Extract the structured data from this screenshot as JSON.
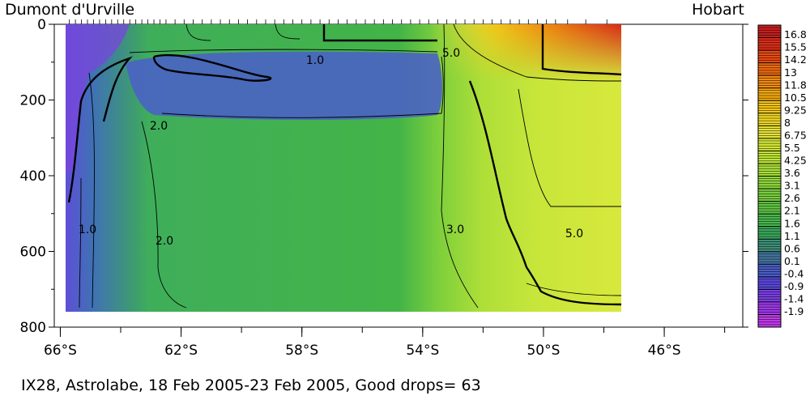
{
  "chart_data": {
    "type": "heatmap",
    "title": "",
    "left_label": "Dumont d'Urville",
    "right_label": "Hobart",
    "caption": "IX28, Astrolabe, 18 Feb 2005-23 Feb 2005, Good drops= 63",
    "x_axis": {
      "ticks": [
        66,
        62,
        58,
        54,
        50,
        46
      ],
      "tick_labels": [
        "66°S",
        "62°S",
        "58°S",
        "54°S",
        "50°S",
        "46°S"
      ],
      "minor_ticks": [
        66,
        64,
        62,
        60,
        58,
        56,
        54,
        52,
        50,
        48,
        46,
        44
      ],
      "range": [
        66.2,
        43.4
      ]
    },
    "y_axis": {
      "ticks": [
        0,
        200,
        400,
        600,
        800
      ],
      "tick_labels": [
        "0",
        "200",
        "400",
        "600",
        "800"
      ],
      "range": [
        0,
        800
      ],
      "inverted": true
    },
    "data_extent": {
      "x": [
        65.7,
        47.8
      ],
      "y": [
        0,
        770
      ]
    },
    "drop_positions": [
      65.7,
      65.5,
      65.3,
      65.1,
      64.9,
      64.7,
      64.5,
      64.3,
      64.1,
      63.9,
      63.7,
      63.5,
      63.3,
      63.1,
      62.9,
      62.7,
      62.5,
      62.2,
      61.9,
      61.6,
      61.3,
      61.0,
      60.7,
      60.4,
      60.1,
      59.8,
      59.5,
      59.2,
      58.9,
      58.6,
      58.3,
      58.0,
      57.7,
      57.4,
      57.1,
      56.8,
      56.5,
      56.2,
      55.9,
      55.6,
      55.3,
      55.0,
      54.7,
      54.4,
      54.1,
      53.8,
      53.5,
      53.2,
      52.9,
      52.6,
      52.3,
      52.0,
      51.7,
      51.4,
      51.1,
      50.8,
      50.5,
      50.2,
      49.9,
      49.6,
      49.2,
      48.6,
      47.9
    ],
    "colorbar": {
      "labels": [
        "16.8",
        "15.5",
        "14.2",
        "13",
        "11.8",
        "10.5",
        "9.25",
        "8",
        "6.75",
        "5.5",
        "4.25",
        "3.6",
        "3.1",
        "2.6",
        "2.1",
        "1.6",
        "1.1",
        "0.6",
        "0.1",
        "-0.4",
        "-0.9",
        "-1.4",
        "-1.9"
      ],
      "colors": [
        "#c81e1e",
        "#dc2d19",
        "#e84a14",
        "#ef6a10",
        "#f28a0e",
        "#f3a80e",
        "#f3c418",
        "#f0d726",
        "#e6e338",
        "#d2e637",
        "#bfe537",
        "#a8df38",
        "#8fd73b",
        "#78ce3f",
        "#60c444",
        "#48b94c",
        "#3aa85c",
        "#3e8f78",
        "#4576a0",
        "#4a5ec6",
        "#5848dc",
        "#7a3fe4",
        "#9e38e8",
        "#c03aea"
      ]
    },
    "contour_labels": [
      "1.0",
      "2.0",
      "1.0",
      "2.0",
      "3.0",
      "5.0",
      "5.0"
    ],
    "unit": ""
  }
}
